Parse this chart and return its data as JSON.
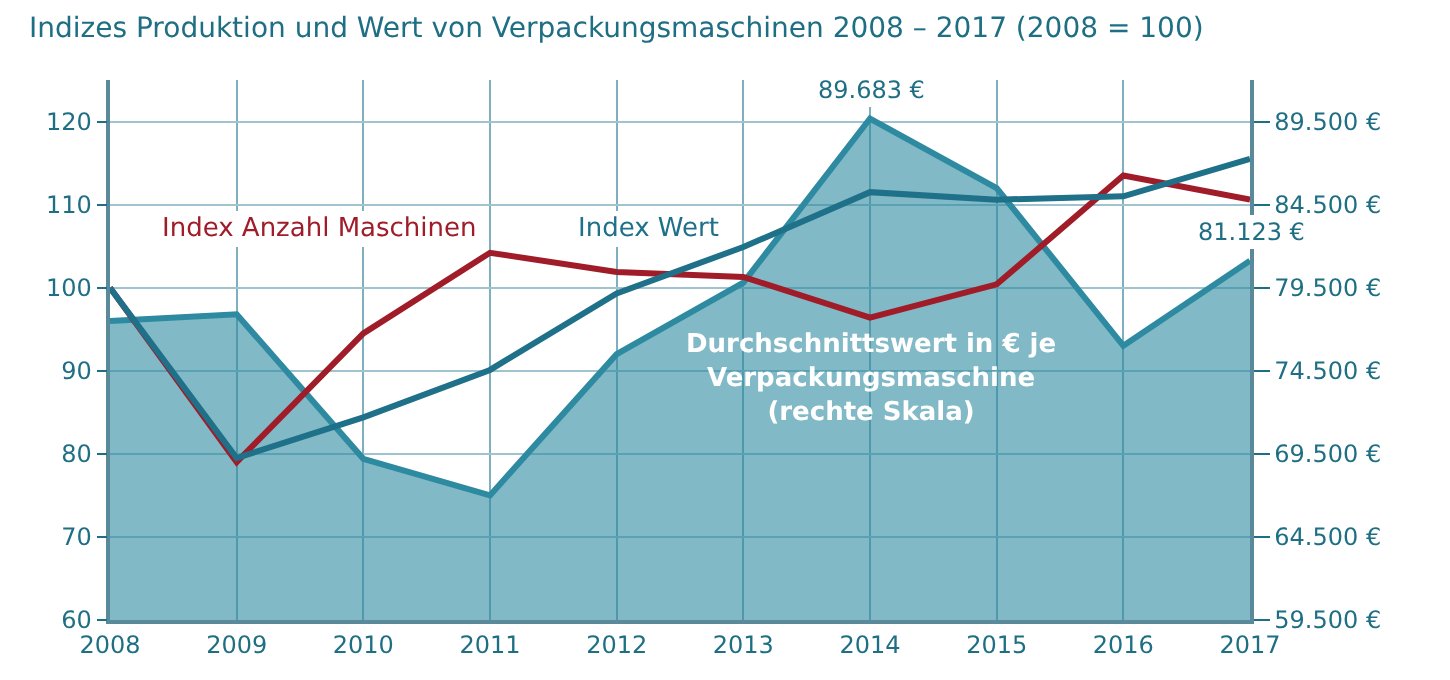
{
  "chart_data": {
    "type": "line",
    "title": "Indizes Produktion und Wert von Verpackungsmaschinen 2008 – 2017 (2008 = 100)",
    "categories": [
      "2008",
      "2009",
      "2010",
      "2011",
      "2012",
      "2013",
      "2014",
      "2015",
      "2016",
      "2017"
    ],
    "series": [
      {
        "name": "Durchschnittswert in € je Verpackungsmaschine (rechte Skala)",
        "type": "area",
        "axis": "y2",
        "color": "#2d8aa0",
        "values": [
          77500,
          77900,
          69200,
          67000,
          75500,
          79800,
          89683,
          85500,
          76000,
          81123
        ],
        "value_labels": [
          null,
          null,
          null,
          null,
          null,
          null,
          "89.683 €",
          null,
          null,
          "81.123 €"
        ]
      },
      {
        "name": "Index Anzahl Maschinen",
        "color": "#a01c28",
        "values": [
          100,
          79,
          94.5,
          104.2,
          101.9,
          101.3,
          96.4,
          100.4,
          113.5,
          110.6
        ]
      },
      {
        "name": "Index Wert",
        "color": "#1f7089",
        "values": [
          100,
          79.5,
          84.4,
          90.1,
          99.3,
          104.9,
          111.5,
          110.6,
          111,
          115.5
        ]
      }
    ],
    "ylim": [
      60,
      125
    ],
    "yticks": [
      60,
      70,
      80,
      90,
      100,
      110,
      120
    ],
    "y2lim": [
      59500,
      92000
    ],
    "y2ticks": [
      {
        "value": 59500,
        "label": "59.500 €"
      },
      {
        "value": 64500,
        "label": "64.500 €"
      },
      {
        "value": 69500,
        "label": "69.500 €"
      },
      {
        "value": 74500,
        "label": "74.500 €"
      },
      {
        "value": 79500,
        "label": "79.500 €"
      },
      {
        "value": 84500,
        "label": "84.500 €"
      },
      {
        "value": 89500,
        "label": "89.500 €"
      }
    ],
    "grid": true,
    "legend": false,
    "marker": "none",
    "line_style": "solid"
  }
}
